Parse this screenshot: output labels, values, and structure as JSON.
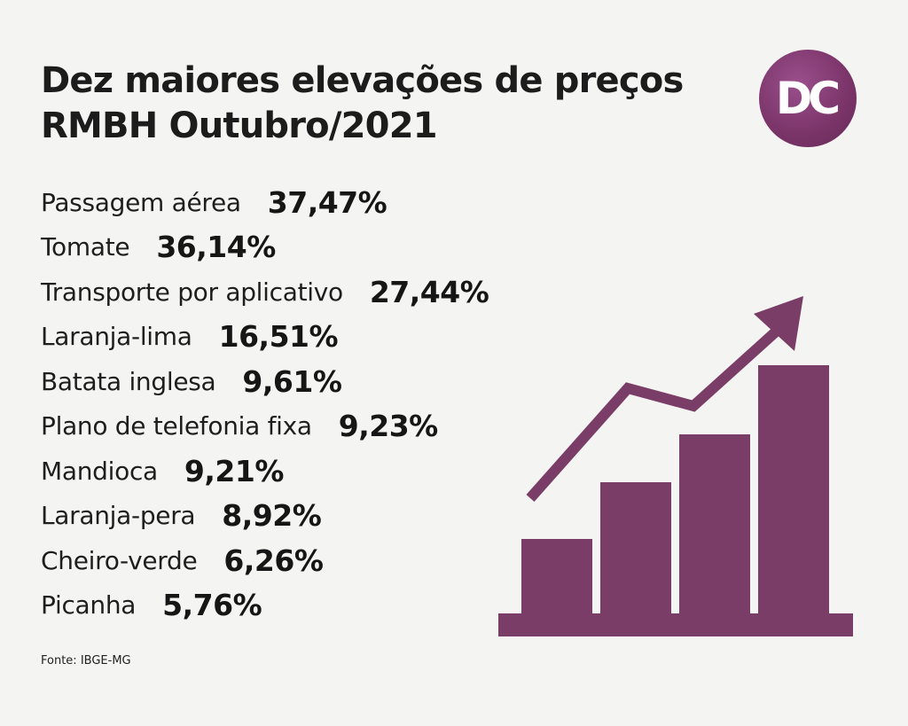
{
  "header": {
    "title_line1": "Dez maiores elevações de preços",
    "title_line2": "RMBH Outubro/2021",
    "logo_text": "DC"
  },
  "chart_data": {
    "type": "table",
    "title": "Dez maiores elevações de preços RMBH Outubro/2021",
    "items": [
      {
        "label": "Passagem aérea",
        "value": "37,47%"
      },
      {
        "label": "Tomate",
        "value": "36,14%"
      },
      {
        "label": "Transporte por aplicativo",
        "value": "27,44%"
      },
      {
        "label": "Laranja-lima",
        "value": "16,51%"
      },
      {
        "label": "Batata inglesa",
        "value": "9,61%"
      },
      {
        "label": "Plano de telefonia fixa",
        "value": "9,23%"
      },
      {
        "label": "Mandioca",
        "value": "9,21%"
      },
      {
        "label": "Laranja-pera",
        "value": "8,92%"
      },
      {
        "label": "Cheiro-verde",
        "value": "6,26%"
      },
      {
        "label": "Picanha",
        "value": "5,76%"
      }
    ]
  },
  "footer": {
    "source": "Fonte: IBGE-MG"
  },
  "colors": {
    "accent": "#7a3d67",
    "logo": "#7a3468",
    "background": "#f4f4f2",
    "text": "#1a1a1a"
  },
  "icons": {
    "logo": "dc-logo",
    "illustration": "rising-bar-chart-icon"
  }
}
